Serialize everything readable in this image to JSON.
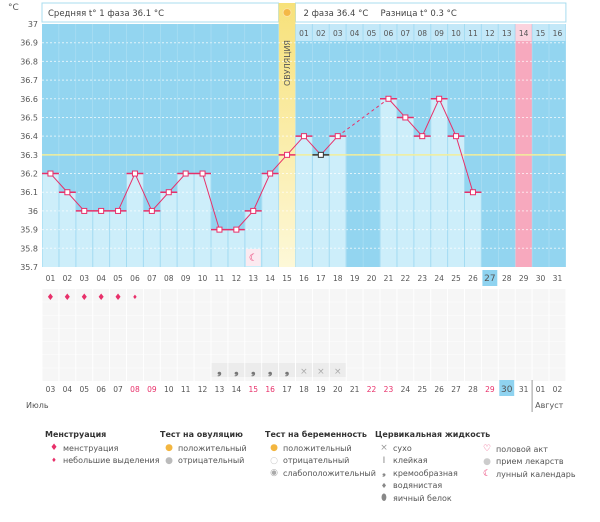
{
  "header": {
    "unit": "°C",
    "phase1": "Средняя t° 1 фаза 36.1 °C",
    "phase2": "2 фаза 36.4 °C",
    "diff": "Разница t° 0.3 °C",
    "ovulation_label": "ОВУЛЯЦИЯ"
  },
  "chart_data": {
    "type": "line",
    "ylabel": "°C",
    "ylim": [
      35.7,
      37.0
    ],
    "yticks": [
      "37",
      "36.9",
      "36.8",
      "36.7",
      "36.6",
      "36.5",
      "36.4",
      "36.3",
      "36.2",
      "36.1",
      "36",
      "35.9",
      "35.8",
      "35.7"
    ],
    "cover_line": 36.3,
    "cycle_days": [
      "01",
      "02",
      "03",
      "04",
      "05",
      "06",
      "07",
      "08",
      "09",
      "10",
      "11",
      "12",
      "13",
      "14",
      "15",
      "16",
      "17",
      "18",
      "19",
      "20",
      "21",
      "22",
      "23",
      "24",
      "25",
      "26",
      "27",
      "28",
      "29",
      "30",
      "31"
    ],
    "temperatures": [
      36.2,
      36.1,
      36.0,
      36.0,
      36.0,
      36.2,
      36.0,
      36.1,
      36.2,
      36.2,
      35.9,
      35.9,
      36.0,
      36.2,
      36.3,
      36.4,
      36.3,
      36.4,
      null,
      null,
      36.6,
      36.5,
      36.4,
      36.6,
      36.4,
      36.1,
      null,
      null,
      null,
      null,
      null
    ],
    "excluded_days": [
      17
    ],
    "ovulation_day": 15,
    "dpo_labels": [
      "01",
      "02",
      "03",
      "04",
      "05",
      "06",
      "07",
      "08",
      "09",
      "10",
      "11",
      "12",
      "13",
      "14",
      "15",
      "16"
    ],
    "expected_period_day": 29,
    "today_day": 27,
    "moon_day": 13,
    "menstruation": {
      "heavy": [
        1,
        2,
        3,
        4,
        5
      ],
      "light": [
        6
      ]
    },
    "cervical": {
      "creamy": [
        11,
        12,
        13,
        14,
        15
      ],
      "dry": [
        16,
        17,
        18
      ]
    },
    "dates": [
      "03",
      "04",
      "05",
      "06",
      "07",
      "08",
      "09",
      "10",
      "11",
      "12",
      "13",
      "14",
      "15",
      "16",
      "17",
      "18",
      "19",
      "20",
      "21",
      "22",
      "23",
      "24",
      "25",
      "26",
      "27",
      "28",
      "29",
      "30",
      "31",
      "01",
      "02"
    ],
    "weekend_dates_idx": [
      5,
      6,
      12,
      13,
      19,
      20,
      26
    ],
    "today_date_idx": 27,
    "month_left": "Июль",
    "month_right": "Август"
  },
  "legend": {
    "menstruation": {
      "title": "Менструация",
      "items": [
        "менструация",
        "небольшие выделения"
      ]
    },
    "ovulation_test": {
      "title": "Тест на овуляцию",
      "items": [
        "положительный",
        "отрицательный"
      ]
    },
    "pregnancy_test": {
      "title": "Тест на беременность",
      "items": [
        "положительный",
        "отрицательный",
        "слабоположительный"
      ]
    },
    "cervical": {
      "title": "Цервикальная жидкость",
      "items": [
        "сухо",
        "клейкая",
        "кремообразная",
        "водянистая",
        "яичный белок"
      ]
    },
    "other": {
      "items": [
        "половой акт",
        "прием лекарств",
        "лунный календарь"
      ]
    }
  },
  "colors": {
    "plot": "#93d5f0",
    "bar": "#cdeefa",
    "line": "#e8306a",
    "ovulation": "#f8e68c",
    "period": "#f7a9be",
    "today": "#8fd3f0"
  }
}
